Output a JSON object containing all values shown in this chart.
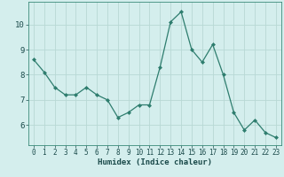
{
  "x": [
    0,
    1,
    2,
    3,
    4,
    5,
    6,
    7,
    8,
    9,
    10,
    11,
    12,
    13,
    14,
    15,
    16,
    17,
    18,
    19,
    20,
    21,
    22,
    23
  ],
  "y": [
    8.6,
    8.1,
    7.5,
    7.2,
    7.2,
    7.5,
    7.2,
    7.0,
    6.3,
    6.5,
    6.8,
    6.8,
    8.3,
    10.1,
    10.5,
    9.0,
    8.5,
    9.2,
    8.0,
    6.5,
    5.8,
    6.2,
    5.7,
    5.5
  ],
  "line_color": "#2e7d6e",
  "marker": "D",
  "marker_size": 2.0,
  "bg_color": "#d4eeed",
  "grid_color": "#b8d8d5",
  "xlabel": "Humidex (Indice chaleur)",
  "ylim": [
    5.2,
    10.9
  ],
  "xlim": [
    -0.5,
    23.5
  ],
  "yticks": [
    6,
    7,
    8,
    9,
    10
  ],
  "xticks": [
    0,
    1,
    2,
    3,
    4,
    5,
    6,
    7,
    8,
    9,
    10,
    11,
    12,
    13,
    14,
    15,
    16,
    17,
    18,
    19,
    20,
    21,
    22,
    23
  ],
  "tick_fontsize": 5.5,
  "xlabel_fontsize": 6.5,
  "line_width": 0.9
}
